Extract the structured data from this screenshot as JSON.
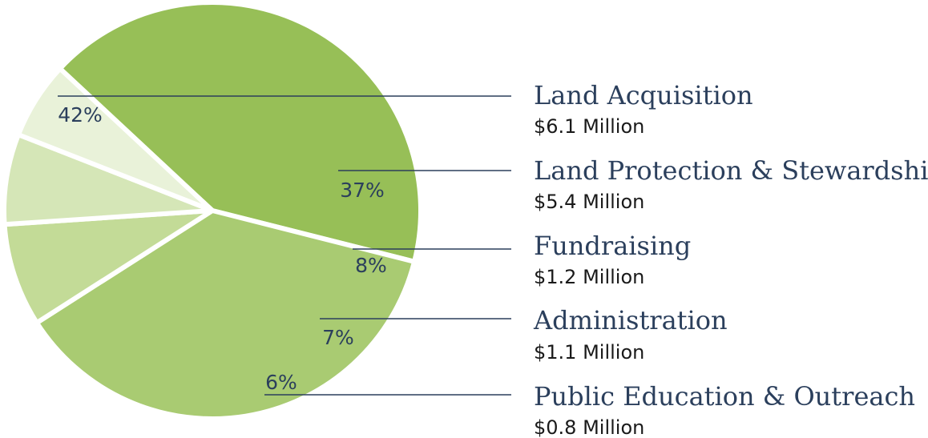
{
  "chart_data": {
    "type": "pie",
    "title": "",
    "total_percent": 100,
    "slices": [
      {
        "name": "Land Acquisition",
        "percent": 42,
        "percent_label": "42%",
        "amount_label": "$6.1 Million",
        "color": "#97bf57"
      },
      {
        "name": "Land Protection & Stewardship",
        "percent": 37,
        "percent_label": "37%",
        "amount_label": "$5.4 Million",
        "color": "#a9cb72"
      },
      {
        "name": "Fundraising",
        "percent": 8,
        "percent_label": "8%",
        "amount_label": "$1.2 Million",
        "color": "#c3db97"
      },
      {
        "name": "Administration",
        "percent": 7,
        "percent_label": "7%",
        "amount_label": "$1.1 Million",
        "color": "#d5e6b7"
      },
      {
        "name": "Public Education & Outreach",
        "percent": 6,
        "percent_label": "6%",
        "amount_label": "$0.8 Million",
        "color": "#e9f2d9"
      }
    ]
  }
}
